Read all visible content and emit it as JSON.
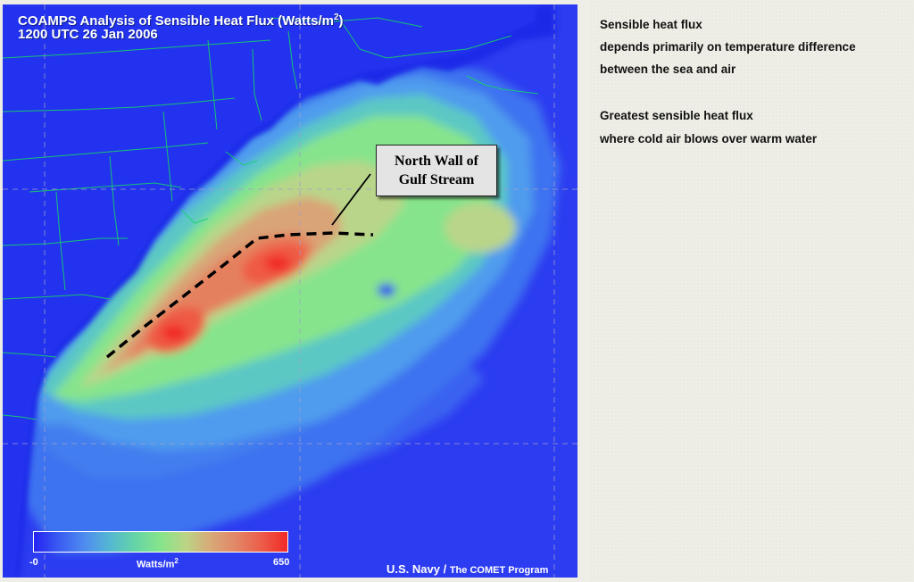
{
  "map": {
    "title": "COAMPS Analysis of Sensible Heat Flux (Watts/m",
    "title_sup": "2",
    "title_end": ")",
    "subtitle": "1200 UTC 26 Jan 2006",
    "annotation_line1": "North Wall of",
    "annotation_line2": "Gulf Stream",
    "scale": {
      "min_label": "-0",
      "max_label": "650",
      "unit": "Watts/m",
      "unit_sup": "2",
      "colors": [
        "#2622f2",
        "#3a5df2",
        "#4f8cf0",
        "#55b8d2",
        "#66d4a6",
        "#86e48a",
        "#bcd486",
        "#d8a877",
        "#e28566",
        "#ec5c48",
        "#f22a28"
      ]
    },
    "credit_main": "U.S. Navy /",
    "credit_small": "The COMET Program"
  },
  "notes": {
    "line1": "Sensible heat flux",
    "line2": "depends primarily on temperature difference",
    "line3": "between the sea and air",
    "line4": "Greatest sensible heat flux",
    "line5": "where cold air blows over warm water"
  }
}
